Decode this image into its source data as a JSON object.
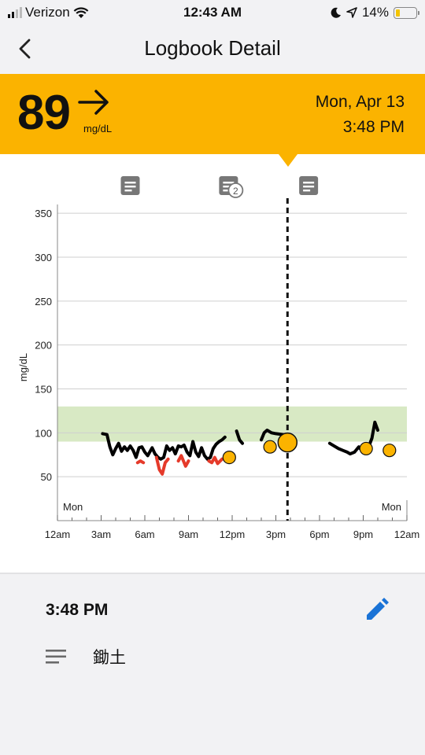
{
  "status_bar": {
    "carrier": "Verizon",
    "time": "12:43 AM",
    "battery": "14%"
  },
  "nav": {
    "title": "Logbook Detail"
  },
  "reading": {
    "value": "89",
    "unit": "mg/dL",
    "trend": "steady",
    "date": "Mon, Apr 13",
    "time": "3:48 PM"
  },
  "note_markers": [
    {
      "x": "5:00",
      "badge": ""
    },
    {
      "x": "11:45",
      "badge": "2"
    },
    {
      "x": "17:15",
      "badge": ""
    }
  ],
  "chart_data": {
    "type": "line",
    "ylabel": "mg/dL",
    "ylim": [
      0,
      360
    ],
    "yticks": [
      50,
      100,
      150,
      200,
      250,
      300,
      350
    ],
    "xlim": [
      "0:00",
      "24:00"
    ],
    "xticks": [
      "12am",
      "3am",
      "6am",
      "9am",
      "12pm",
      "3pm",
      "6pm",
      "9pm",
      "12am"
    ],
    "day_labels": {
      "start": "Mon",
      "end": "Mon"
    },
    "target_range": [
      90,
      130
    ],
    "selected_time": "15:48",
    "colors": {
      "sensor": "#000000",
      "low": "#e53a2a",
      "target": "#d8e9c4",
      "scan": "#fbb300",
      "grid": "#cfcfcf"
    },
    "sensor_segments": [
      [
        [
          3.1,
          99
        ],
        [
          3.4,
          98
        ],
        [
          3.6,
          84
        ],
        [
          3.8,
          75
        ],
        [
          4.0,
          82
        ],
        [
          4.2,
          88
        ],
        [
          4.4,
          79
        ],
        [
          4.6,
          84
        ],
        [
          4.8,
          80
        ],
        [
          5.0,
          85
        ],
        [
          5.2,
          80
        ],
        [
          5.4,
          72
        ],
        [
          5.6,
          83
        ],
        [
          5.8,
          84
        ],
        [
          6.0,
          78
        ],
        [
          6.2,
          74
        ],
        [
          6.5,
          83
        ],
        [
          6.7,
          76
        ],
        [
          6.9,
          72
        ],
        [
          7.1,
          70
        ],
        [
          7.3,
          72
        ],
        [
          7.5,
          85
        ],
        [
          7.7,
          80
        ],
        [
          7.9,
          83
        ],
        [
          8.1,
          76
        ],
        [
          8.3,
          85
        ],
        [
          8.5,
          84
        ],
        [
          8.7,
          86
        ],
        [
          8.9,
          78
        ],
        [
          9.1,
          74
        ],
        [
          9.3,
          90
        ],
        [
          9.5,
          78
        ],
        [
          9.7,
          73
        ],
        [
          9.9,
          83
        ],
        [
          10.1,
          74
        ],
        [
          10.3,
          70
        ],
        [
          10.5,
          72
        ],
        [
          10.7,
          82
        ],
        [
          10.9,
          87
        ],
        [
          11.1,
          90
        ],
        [
          11.3,
          92
        ],
        [
          11.5,
          95
        ]
      ],
      [
        [
          12.3,
          102
        ],
        [
          12.5,
          92
        ],
        [
          12.7,
          88
        ]
      ],
      [
        [
          14.0,
          92
        ],
        [
          14.2,
          100
        ],
        [
          14.4,
          103
        ],
        [
          14.7,
          100
        ],
        [
          15.0,
          99
        ],
        [
          15.5,
          98
        ],
        [
          15.8,
          97
        ],
        [
          16.2,
          95
        ]
      ],
      [
        [
          18.7,
          88
        ],
        [
          19.0,
          85
        ],
        [
          19.3,
          82
        ],
        [
          19.6,
          80
        ],
        [
          19.9,
          78
        ],
        [
          20.1,
          76
        ],
        [
          20.4,
          78
        ],
        [
          20.7,
          84
        ],
        [
          20.9,
          80
        ],
        [
          21.1,
          77
        ],
        [
          21.4,
          85
        ],
        [
          21.6,
          94
        ],
        [
          21.8,
          112
        ],
        [
          22.0,
          103
        ]
      ]
    ],
    "low_segments": [
      [
        [
          5.5,
          66
        ],
        [
          5.7,
          68
        ],
        [
          5.9,
          66
        ]
      ],
      [
        [
          6.8,
          72
        ],
        [
          7.0,
          58
        ],
        [
          7.2,
          53
        ],
        [
          7.4,
          66
        ],
        [
          7.6,
          70
        ]
      ],
      [
        [
          8.3,
          68
        ],
        [
          8.5,
          74
        ],
        [
          8.8,
          62
        ],
        [
          9.0,
          68
        ]
      ],
      [
        [
          10.4,
          68
        ],
        [
          10.6,
          66
        ],
        [
          10.8,
          72
        ],
        [
          11.0,
          65
        ],
        [
          11.3,
          70
        ]
      ]
    ],
    "scan_points": [
      {
        "x": 11.8,
        "y": 72
      },
      {
        "x": 14.6,
        "y": 84
      },
      {
        "x": 15.8,
        "y": 89,
        "selected": true
      },
      {
        "x": 21.2,
        "y": 82
      },
      {
        "x": 22.8,
        "y": 80
      }
    ]
  },
  "detail": {
    "time": "3:48 PM",
    "note": "鋤土"
  }
}
